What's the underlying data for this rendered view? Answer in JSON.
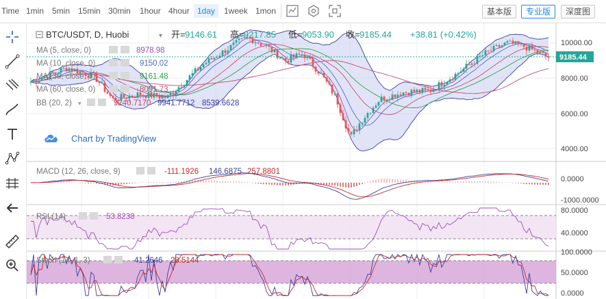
{
  "toolbar": {
    "timeframes": [
      "Time",
      "1min",
      "5min",
      "15min",
      "30min",
      "1hour",
      "4hour",
      "1day",
      "1week",
      "1mon"
    ],
    "selected": "1day",
    "icons": [
      "candles-icon",
      "settings-icon",
      "fullscreen-icon"
    ],
    "version_buttons": [
      "基本版",
      "专业版",
      "深度图"
    ],
    "active_version": "专业版"
  },
  "drawing_tools": [
    "crosshair-icon",
    "trendline-icon",
    "fib-icon",
    "brush-icon",
    "text-icon",
    "pattern-icon",
    "measure-icon",
    "back-arrow-icon",
    "ruler-icon",
    "zoom-icon"
  ],
  "header": {
    "symbol": "BTC/USDT, D, Huobi",
    "open_label": "开=",
    "open": "9146.61",
    "high_label": "高=",
    "high": "9217.85",
    "low_label": "低=",
    "low": "9053.90",
    "close_label": "收=",
    "close": "9185.44",
    "change": "+38.81 (+0.42%)"
  },
  "indicators": [
    {
      "name": "MA (5, close, 0)",
      "value": "8978.98",
      "color": "#9b4fb5"
    },
    {
      "name": "MA (10, close, 0)",
      "value": "9150.02",
      "color": "#4b6bc4"
    },
    {
      "name": "MA (30, close, 0)",
      "value": "9161.48",
      "color": "#35a048"
    },
    {
      "name": "MA (60, close, 0)",
      "value": "8091.73",
      "color": "#c44d6e"
    },
    {
      "name": "BB (20, 2)",
      "values": [
        "9240.7170",
        "9941.7712",
        "8539.6628"
      ],
      "colors": [
        "#c44d6e",
        "#3a3f9e",
        "#3a3f9e"
      ]
    }
  ],
  "watermark": "Chart by TradingView",
  "price_axis": [
    "10000.00",
    "8000.00",
    "6000.00",
    "4000.00"
  ],
  "last_price": "9185.44",
  "macd": {
    "name": "MACD (12, 26, close, 9)",
    "values": [
      "-111.1926",
      "146.6875",
      "257.8801"
    ],
    "axis": [
      "0.0000",
      "-1000.0000"
    ]
  },
  "rsi": {
    "name": "RSI (14)",
    "value": "53.8238",
    "axis": [
      "80.0000",
      "40.0000"
    ]
  },
  "stoch": {
    "name": "Stoch (14, 1, 3)",
    "values": [
      "41.2646",
      "28.5144"
    ],
    "axis": [
      "100.0000",
      "50.0000",
      "0.0000"
    ]
  },
  "colors": {
    "up": "#26a69a",
    "down": "#ef5350",
    "accent": "#1e88e5"
  }
}
